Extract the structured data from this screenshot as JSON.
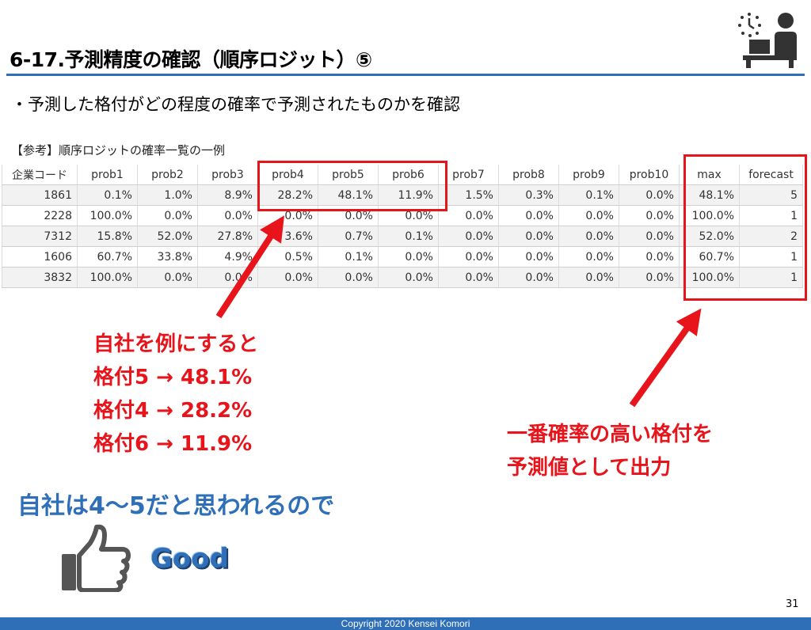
{
  "slide": {
    "title": "6-17.予測精度の確認（順序ロジット）⑤",
    "subtitle": "・予測した格付がどの程度の確率で予測されたものかを確認",
    "ref_label": "【参考】順序ロジットの確率一覧の一例",
    "page_number": "31",
    "copyright": "Copyright  2020  Kensei Komori"
  },
  "table": {
    "headers": [
      "企業コード",
      "prob1",
      "prob2",
      "prob3",
      "prob4",
      "prob5",
      "prob6",
      "prob7",
      "prob8",
      "prob9",
      "prob10",
      "max",
      "forecast"
    ],
    "rows": [
      [
        "1861",
        "0.1%",
        "1.0%",
        "8.9%",
        "28.2%",
        "48.1%",
        "11.9%",
        "1.5%",
        "0.3%",
        "0.1%",
        "0.0%",
        "48.1%",
        "5"
      ],
      [
        "2228",
        "100.0%",
        "0.0%",
        "0.0%",
        "0.0%",
        "0.0%",
        "0.0%",
        "0.0%",
        "0.0%",
        "0.0%",
        "0.0%",
        "100.0%",
        "1"
      ],
      [
        "7312",
        "15.8%",
        "52.0%",
        "27.8%",
        "3.6%",
        "0.7%",
        "0.1%",
        "0.0%",
        "0.0%",
        "0.0%",
        "0.0%",
        "52.0%",
        "2"
      ],
      [
        "1606",
        "60.7%",
        "33.8%",
        "4.9%",
        "0.5%",
        "0.1%",
        "0.0%",
        "0.0%",
        "0.0%",
        "0.0%",
        "0.0%",
        "60.7%",
        "1"
      ],
      [
        "3832",
        "100.0%",
        "0.0%",
        "0.0%",
        "0.0%",
        "0.0%",
        "0.0%",
        "0.0%",
        "0.0%",
        "0.0%",
        "0.0%",
        "100.0%",
        "1"
      ]
    ]
  },
  "callout_left": {
    "lines": [
      "自社を例にすると",
      "格付5 → 48.1%",
      "格付4 → 28.2%",
      "格付6 → 11.9%"
    ]
  },
  "callout_right": {
    "lines": [
      "一番確率の高い格付を",
      "予測値として出力"
    ]
  },
  "conclusion": "自社は4～5だと思われるので",
  "good_label": "Good",
  "colors": {
    "accent_red": "#e8141b",
    "accent_blue": "#2e6fb8"
  },
  "icons": {
    "logo": "person-at-desk-clock-icon",
    "thumb": "thumbs-up-icon"
  }
}
